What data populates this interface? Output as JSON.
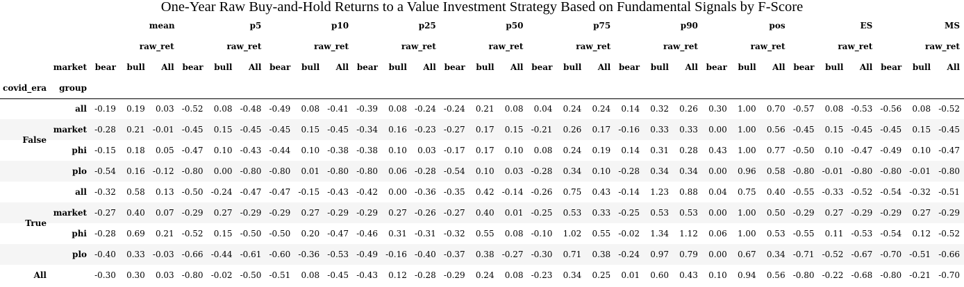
{
  "caption": "One-Year Raw Buy-and-Hold Returns to a Value Investment Strategy Based on Fundamental Signals by F-Score",
  "header": {
    "stats": [
      "mean",
      "p5",
      "p10",
      "p25",
      "p50",
      "p75",
      "p90",
      "pos",
      "ES",
      "MS"
    ],
    "variable": "raw_ret",
    "column_name": "market",
    "columns": [
      "bear",
      "bull",
      "All"
    ],
    "index_names": [
      "covid_era",
      "group"
    ]
  },
  "rows": [
    {
      "era": "False",
      "group": "all",
      "values": [
        "-0.19",
        "0.19",
        "0.03",
        "-0.52",
        "0.08",
        "-0.48",
        "-0.49",
        "0.08",
        "-0.41",
        "-0.39",
        "0.08",
        "-0.24",
        "-0.24",
        "0.21",
        "0.08",
        "0.04",
        "0.24",
        "0.24",
        "0.14",
        "0.32",
        "0.26",
        "0.30",
        "1.00",
        "0.70",
        "-0.57",
        "0.08",
        "-0.53",
        "-0.56",
        "0.08",
        "-0.52"
      ]
    },
    {
      "era": "",
      "group": "market",
      "values": [
        "-0.28",
        "0.21",
        "-0.01",
        "-0.45",
        "0.15",
        "-0.45",
        "-0.45",
        "0.15",
        "-0.45",
        "-0.34",
        "0.16",
        "-0.23",
        "-0.27",
        "0.17",
        "0.15",
        "-0.21",
        "0.26",
        "0.17",
        "-0.16",
        "0.33",
        "0.33",
        "0.00",
        "1.00",
        "0.56",
        "-0.45",
        "0.15",
        "-0.45",
        "-0.45",
        "0.15",
        "-0.45"
      ]
    },
    {
      "era": "",
      "group": "phi",
      "values": [
        "-0.15",
        "0.18",
        "0.05",
        "-0.47",
        "0.10",
        "-0.43",
        "-0.44",
        "0.10",
        "-0.38",
        "-0.38",
        "0.10",
        "0.03",
        "-0.17",
        "0.17",
        "0.10",
        "0.08",
        "0.24",
        "0.19",
        "0.14",
        "0.31",
        "0.28",
        "0.43",
        "1.00",
        "0.77",
        "-0.50",
        "0.10",
        "-0.47",
        "-0.49",
        "0.10",
        "-0.47"
      ]
    },
    {
      "era": "",
      "group": "plo",
      "values": [
        "-0.54",
        "0.16",
        "-0.12",
        "-0.80",
        "0.00",
        "-0.80",
        "-0.80",
        "0.01",
        "-0.80",
        "-0.80",
        "0.06",
        "-0.28",
        "-0.54",
        "0.10",
        "0.03",
        "-0.28",
        "0.34",
        "0.10",
        "-0.28",
        "0.34",
        "0.34",
        "0.00",
        "0.96",
        "0.58",
        "-0.80",
        "-0.01",
        "-0.80",
        "-0.80",
        "-0.01",
        "-0.80"
      ]
    },
    {
      "era": "True",
      "group": "all",
      "values": [
        "-0.32",
        "0.58",
        "0.13",
        "-0.50",
        "-0.24",
        "-0.47",
        "-0.47",
        "-0.15",
        "-0.43",
        "-0.42",
        "0.00",
        "-0.36",
        "-0.35",
        "0.42",
        "-0.14",
        "-0.26",
        "0.75",
        "0.43",
        "-0.14",
        "1.23",
        "0.88",
        "0.04",
        "0.75",
        "0.40",
        "-0.55",
        "-0.33",
        "-0.52",
        "-0.54",
        "-0.32",
        "-0.51"
      ]
    },
    {
      "era": "",
      "group": "market",
      "values": [
        "-0.27",
        "0.40",
        "0.07",
        "-0.29",
        "0.27",
        "-0.29",
        "-0.29",
        "0.27",
        "-0.29",
        "-0.29",
        "0.27",
        "-0.26",
        "-0.27",
        "0.40",
        "0.01",
        "-0.25",
        "0.53",
        "0.33",
        "-0.25",
        "0.53",
        "0.53",
        "0.00",
        "1.00",
        "0.50",
        "-0.29",
        "0.27",
        "-0.29",
        "-0.29",
        "0.27",
        "-0.29"
      ]
    },
    {
      "era": "",
      "group": "phi",
      "values": [
        "-0.28",
        "0.69",
        "0.21",
        "-0.52",
        "0.15",
        "-0.50",
        "-0.50",
        "0.20",
        "-0.47",
        "-0.46",
        "0.31",
        "-0.31",
        "-0.32",
        "0.55",
        "0.08",
        "-0.10",
        "1.02",
        "0.55",
        "-0.02",
        "1.34",
        "1.12",
        "0.06",
        "1.00",
        "0.53",
        "-0.55",
        "0.11",
        "-0.53",
        "-0.54",
        "0.12",
        "-0.52"
      ]
    },
    {
      "era": "",
      "group": "plo",
      "values": [
        "-0.40",
        "0.33",
        "-0.03",
        "-0.66",
        "-0.44",
        "-0.61",
        "-0.60",
        "-0.36",
        "-0.53",
        "-0.49",
        "-0.16",
        "-0.40",
        "-0.37",
        "0.38",
        "-0.27",
        "-0.30",
        "0.71",
        "0.38",
        "-0.24",
        "0.97",
        "0.79",
        "0.00",
        "0.67",
        "0.34",
        "-0.71",
        "-0.52",
        "-0.67",
        "-0.70",
        "-0.51",
        "-0.66"
      ]
    },
    {
      "era": "All",
      "group": "",
      "values": [
        "-0.30",
        "0.30",
        "0.03",
        "-0.80",
        "-0.02",
        "-0.50",
        "-0.51",
        "0.08",
        "-0.45",
        "-0.43",
        "0.12",
        "-0.28",
        "-0.29",
        "0.24",
        "0.08",
        "-0.23",
        "0.34",
        "0.25",
        "0.01",
        "0.60",
        "0.43",
        "0.10",
        "0.94",
        "0.56",
        "-0.80",
        "-0.22",
        "-0.68",
        "-0.80",
        "-0.21",
        "-0.70"
      ]
    }
  ]
}
